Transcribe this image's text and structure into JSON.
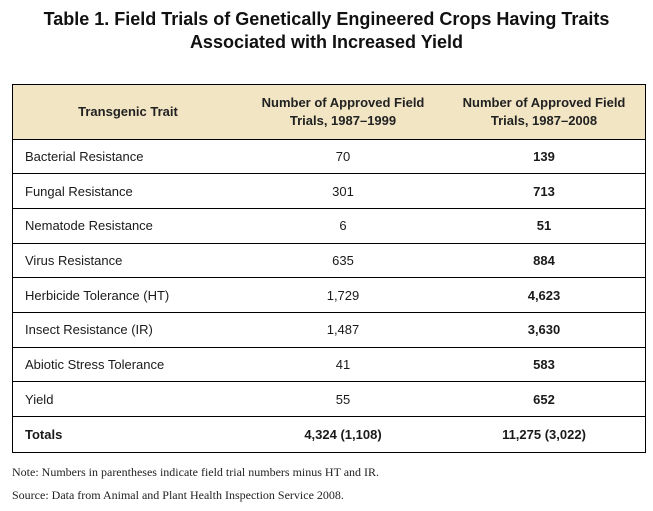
{
  "title": {
    "line1": "Table 1. Field Trials of Genetically Engineered Crops Having Traits",
    "line2": "Associated with Increased Yield"
  },
  "table": {
    "headers": [
      "Transgenic Trait",
      "Number of Approved Field Trials, 1987–1999",
      "Number of Approved Field Trials, 1987–2008"
    ],
    "header_bg": "#f1e5c4",
    "rows": [
      {
        "trait": "Bacterial Resistance",
        "v1999": "70",
        "v2008": "139"
      },
      {
        "trait": "Fungal Resistance",
        "v1999": "301",
        "v2008": "713"
      },
      {
        "trait": "Nematode Resistance",
        "v1999": "6",
        "v2008": "51"
      },
      {
        "trait": "Virus Resistance",
        "v1999": "635",
        "v2008": "884"
      },
      {
        "trait": "Herbicide Tolerance (HT)",
        "v1999": "1,729",
        "v2008": "4,623"
      },
      {
        "trait": "Insect Resistance (IR)",
        "v1999": "1,487",
        "v2008": "3,630"
      },
      {
        "trait": "Abiotic Stress Tolerance",
        "v1999": "41",
        "v2008": "583"
      },
      {
        "trait": "Yield",
        "v1999": "55",
        "v2008": "652"
      }
    ],
    "totals": {
      "trait": "Totals",
      "v1999": "4,324 (1,108)",
      "v2008": "11,275 (3,022)"
    }
  },
  "notes": {
    "note": "Note: Numbers in parentheses indicate field trial numbers minus HT and IR.",
    "source": "Source: Data from Animal and Plant Health Inspection Service 2008."
  }
}
